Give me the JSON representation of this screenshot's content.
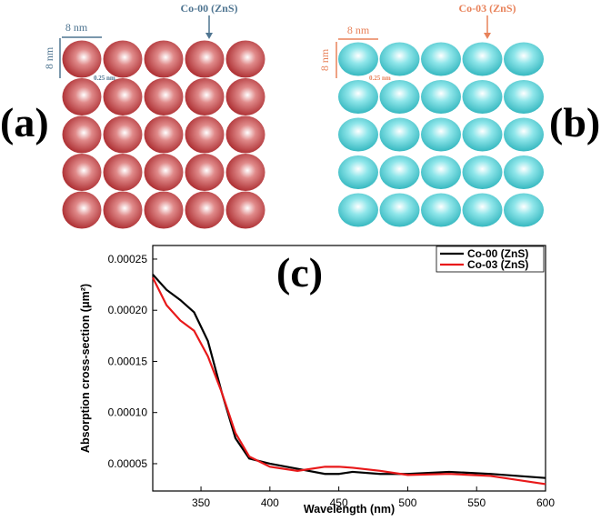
{
  "diagram_a": {
    "label": "(a)",
    "title": "Co-00 (ZnS)",
    "width": "8 nm",
    "height": "8 nm",
    "gap": "0.25 nm"
  },
  "diagram_b": {
    "label": "(b)",
    "title": "Co-03 (ZnS)",
    "width": "8 nm",
    "height": "8 nm",
    "gap": "0.25 nm"
  },
  "chart_data": {
    "type": "line",
    "panel_label": "(c)",
    "x_label": "Wavelength (nm)",
    "y_label": "Absorption cross-section (μm²)",
    "x": [
      315,
      325,
      335,
      345,
      355,
      365,
      375,
      385,
      400,
      420,
      440,
      450,
      460,
      480,
      500,
      530,
      560,
      600
    ],
    "series": [
      {
        "name": "Co-00 (ZnS)",
        "color": "#000000",
        "values": [
          0.000235,
          0.00022,
          0.00021,
          0.000198,
          0.00017,
          0.00012,
          7.5e-05,
          5.5e-05,
          5e-05,
          4.5e-05,
          4e-05,
          4e-05,
          4.2e-05,
          4e-05,
          4e-05,
          4.2e-05,
          4e-05,
          3.6e-05
        ]
      },
      {
        "name": "Co-03 (ZnS)",
        "color": "#e8191a",
        "values": [
          0.000232,
          0.000205,
          0.00019,
          0.00018,
          0.000155,
          0.00012,
          8e-05,
          5.7e-05,
          4.7e-05,
          4.3e-05,
          4.7e-05,
          4.7e-05,
          4.6e-05,
          4.3e-05,
          3.9e-05,
          4e-05,
          3.8e-05,
          3e-05
        ]
      }
    ],
    "xlim": [
      315,
      600
    ],
    "xticks": [
      350,
      400,
      450,
      500,
      550,
      600
    ],
    "ylim": [
      2.33e-05,
      0.0002633
    ],
    "yticks": [
      5e-05,
      {
        "value": 0.0001,
        "label": "0.00010"
      },
      0.00015,
      {
        "value": 0.0002,
        "label": "0.00020"
      },
      0.00025
    ],
    "legend": "upper right"
  }
}
